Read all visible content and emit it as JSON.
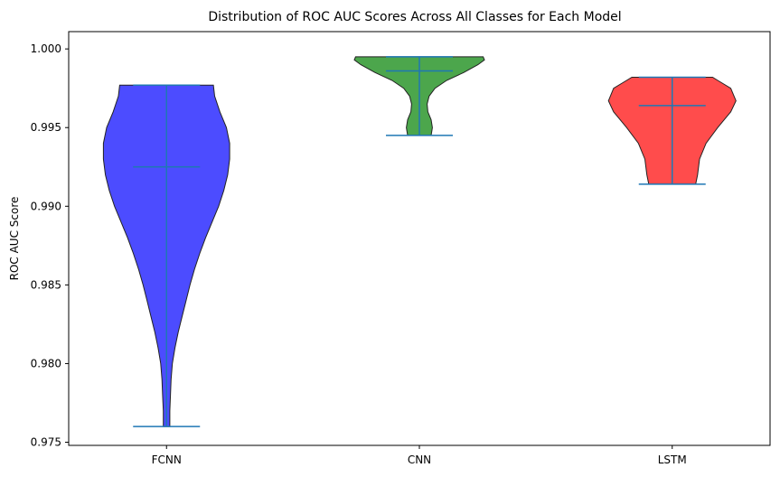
{
  "chart_data": {
    "type": "violin",
    "title": "Distribution of ROC AUC Scores Across All Classes for Each Model",
    "xlabel": "",
    "ylabel": "ROC AUC Score",
    "ylim": [
      0.9748,
      1.0011
    ],
    "yticks": [
      0.975,
      0.98,
      0.985,
      0.99,
      0.995,
      1.0
    ],
    "ytick_labels": [
      "0.975",
      "0.980",
      "0.985",
      "0.990",
      "0.995",
      "1.000"
    ],
    "categories": [
      "FCNN",
      "CNN",
      "LSTM"
    ],
    "grid": false,
    "series": [
      {
        "category": "FCNN",
        "color": "#0000ff",
        "min": 0.976,
        "median": 0.9925,
        "max": 0.9977,
        "profile": [
          [
            0.976,
            0.05
          ],
          [
            0.977,
            0.05
          ],
          [
            0.978,
            0.06
          ],
          [
            0.979,
            0.07
          ],
          [
            0.98,
            0.09
          ],
          [
            0.981,
            0.13
          ],
          [
            0.982,
            0.18
          ],
          [
            0.983,
            0.24
          ],
          [
            0.984,
            0.3
          ],
          [
            0.985,
            0.36
          ],
          [
            0.986,
            0.43
          ],
          [
            0.987,
            0.51
          ],
          [
            0.988,
            0.6
          ],
          [
            0.989,
            0.7
          ],
          [
            0.99,
            0.8
          ],
          [
            0.991,
            0.88
          ],
          [
            0.992,
            0.94
          ],
          [
            0.993,
            0.97
          ],
          [
            0.994,
            0.97
          ],
          [
            0.995,
            0.92
          ],
          [
            0.996,
            0.82
          ],
          [
            0.997,
            0.74
          ],
          [
            0.9977,
            0.72
          ]
        ]
      },
      {
        "category": "CNN",
        "color": "#008000",
        "min": 0.9945,
        "median": 0.9986,
        "max": 0.9995,
        "profile": [
          [
            0.9945,
            0.18
          ],
          [
            0.995,
            0.2
          ],
          [
            0.9955,
            0.18
          ],
          [
            0.996,
            0.13
          ],
          [
            0.9965,
            0.12
          ],
          [
            0.997,
            0.15
          ],
          [
            0.9975,
            0.24
          ],
          [
            0.998,
            0.42
          ],
          [
            0.9985,
            0.68
          ],
          [
            0.999,
            0.9
          ],
          [
            0.9993,
            1.0
          ],
          [
            0.9995,
            0.98
          ]
        ]
      },
      {
        "category": "LSTM",
        "color": "#ff0000",
        "min": 0.9914,
        "median": 0.9964,
        "max": 0.9982,
        "profile": [
          [
            0.9914,
            0.36
          ],
          [
            0.992,
            0.39
          ],
          [
            0.993,
            0.42
          ],
          [
            0.994,
            0.52
          ],
          [
            0.995,
            0.7
          ],
          [
            0.996,
            0.9
          ],
          [
            0.9967,
            0.98
          ],
          [
            0.9975,
            0.9
          ],
          [
            0.998,
            0.7
          ],
          [
            0.9982,
            0.62
          ]
        ]
      }
    ]
  }
}
